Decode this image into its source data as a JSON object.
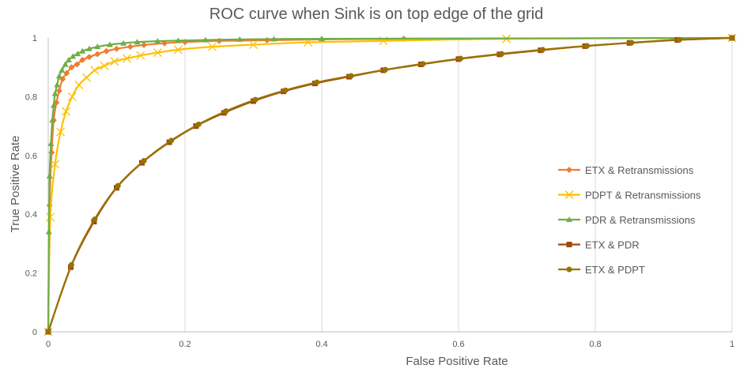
{
  "chart_data": {
    "type": "line",
    "title": "ROC curve when Sink is on top edge of the grid",
    "xlabel": "False Positive Rate",
    "ylabel": "True Positive Rate",
    "xlim": [
      0,
      1
    ],
    "ylim": [
      0,
      1
    ],
    "xticks": [
      "0",
      "0.2",
      "0.4",
      "0.6",
      "0.8",
      "1"
    ],
    "yticks": [
      "0",
      "0.2",
      "0.4",
      "0.6",
      "0.8",
      "1"
    ],
    "grid": "vertical",
    "legend_position": "right",
    "series": [
      {
        "name": "ETX & Retransmissions",
        "color": "#ED7D31",
        "marker": "diamond",
        "points": [
          [
            0,
            0
          ],
          [
            0.002,
            0.43
          ],
          [
            0.005,
            0.61
          ],
          [
            0.008,
            0.72
          ],
          [
            0.012,
            0.78
          ],
          [
            0.016,
            0.82
          ],
          [
            0.021,
            0.86
          ],
          [
            0.027,
            0.88
          ],
          [
            0.034,
            0.9
          ],
          [
            0.042,
            0.91
          ],
          [
            0.05,
            0.925
          ],
          [
            0.06,
            0.935
          ],
          [
            0.072,
            0.945
          ],
          [
            0.085,
            0.955
          ],
          [
            0.1,
            0.963
          ],
          [
            0.12,
            0.97
          ],
          [
            0.14,
            0.976
          ],
          [
            0.17,
            0.982
          ],
          [
            0.2,
            0.986
          ],
          [
            0.25,
            0.99
          ],
          [
            0.32,
            0.992
          ],
          [
            0.4,
            0.995
          ],
          [
            0.52,
            0.997
          ],
          [
            1,
            1
          ]
        ]
      },
      {
        "name": "PDPT & Retransmissions",
        "color": "#FFC000",
        "marker": "x",
        "points": [
          [
            0,
            0
          ],
          [
            0.003,
            0.39
          ],
          [
            0.01,
            0.57
          ],
          [
            0.018,
            0.68
          ],
          [
            0.026,
            0.75
          ],
          [
            0.035,
            0.8
          ],
          [
            0.045,
            0.84
          ],
          [
            0.056,
            0.865
          ],
          [
            0.068,
            0.89
          ],
          [
            0.082,
            0.905
          ],
          [
            0.097,
            0.92
          ],
          [
            0.115,
            0.93
          ],
          [
            0.135,
            0.94
          ],
          [
            0.16,
            0.95
          ],
          [
            0.19,
            0.96
          ],
          [
            0.24,
            0.97
          ],
          [
            0.3,
            0.977
          ],
          [
            0.38,
            0.985
          ],
          [
            0.49,
            0.99
          ],
          [
            0.67,
            0.997
          ],
          [
            1,
            1
          ]
        ]
      },
      {
        "name": "PDR & Retransmissions",
        "color": "#70AD47",
        "marker": "triangle",
        "points": [
          [
            0,
            0
          ],
          [
            0.001,
            0.34
          ],
          [
            0.002,
            0.53
          ],
          [
            0.004,
            0.64
          ],
          [
            0.006,
            0.72
          ],
          [
            0.008,
            0.77
          ],
          [
            0.01,
            0.81
          ],
          [
            0.013,
            0.84
          ],
          [
            0.016,
            0.87
          ],
          [
            0.02,
            0.89
          ],
          [
            0.025,
            0.91
          ],
          [
            0.03,
            0.925
          ],
          [
            0.036,
            0.937
          ],
          [
            0.043,
            0.946
          ],
          [
            0.05,
            0.955
          ],
          [
            0.06,
            0.963
          ],
          [
            0.072,
            0.97
          ],
          [
            0.09,
            0.977
          ],
          [
            0.11,
            0.982
          ],
          [
            0.13,
            0.986
          ],
          [
            0.16,
            0.989
          ],
          [
            0.19,
            0.991
          ],
          [
            0.23,
            0.993
          ],
          [
            0.28,
            0.995
          ],
          [
            0.33,
            0.996
          ],
          [
            0.4,
            0.997
          ],
          [
            1,
            1
          ]
        ]
      },
      {
        "name": "ETX & PDR",
        "color": "#9E480E",
        "marker": "square",
        "points": [
          [
            0,
            0
          ],
          [
            0.033,
            0.22
          ],
          [
            0.067,
            0.375
          ],
          [
            0.1,
            0.49
          ],
          [
            0.137,
            0.575
          ],
          [
            0.177,
            0.645
          ],
          [
            0.216,
            0.7
          ],
          [
            0.257,
            0.745
          ],
          [
            0.3,
            0.785
          ],
          [
            0.344,
            0.818
          ],
          [
            0.39,
            0.845
          ],
          [
            0.44,
            0.868
          ],
          [
            0.49,
            0.89
          ],
          [
            0.545,
            0.91
          ],
          [
            0.6,
            0.928
          ],
          [
            0.66,
            0.944
          ],
          [
            0.72,
            0.958
          ],
          [
            0.785,
            0.972
          ],
          [
            0.85,
            0.983
          ],
          [
            0.92,
            0.993
          ],
          [
            1,
            1
          ]
        ]
      },
      {
        "name": "ETX & PDPT",
        "color": "#997300",
        "marker": "circle",
        "points": [
          [
            0,
            0
          ],
          [
            0.034,
            0.228
          ],
          [
            0.068,
            0.383
          ],
          [
            0.102,
            0.497
          ],
          [
            0.14,
            0.582
          ],
          [
            0.18,
            0.651
          ],
          [
            0.22,
            0.706
          ],
          [
            0.26,
            0.751
          ],
          [
            0.303,
            0.79
          ],
          [
            0.347,
            0.822
          ],
          [
            0.393,
            0.849
          ],
          [
            0.443,
            0.871
          ],
          [
            0.493,
            0.892
          ],
          [
            0.548,
            0.912
          ],
          [
            0.603,
            0.93
          ],
          [
            0.663,
            0.946
          ],
          [
            0.723,
            0.96
          ],
          [
            0.788,
            0.973
          ],
          [
            0.853,
            0.984
          ],
          [
            0.923,
            0.994
          ],
          [
            1,
            1
          ]
        ]
      }
    ]
  }
}
